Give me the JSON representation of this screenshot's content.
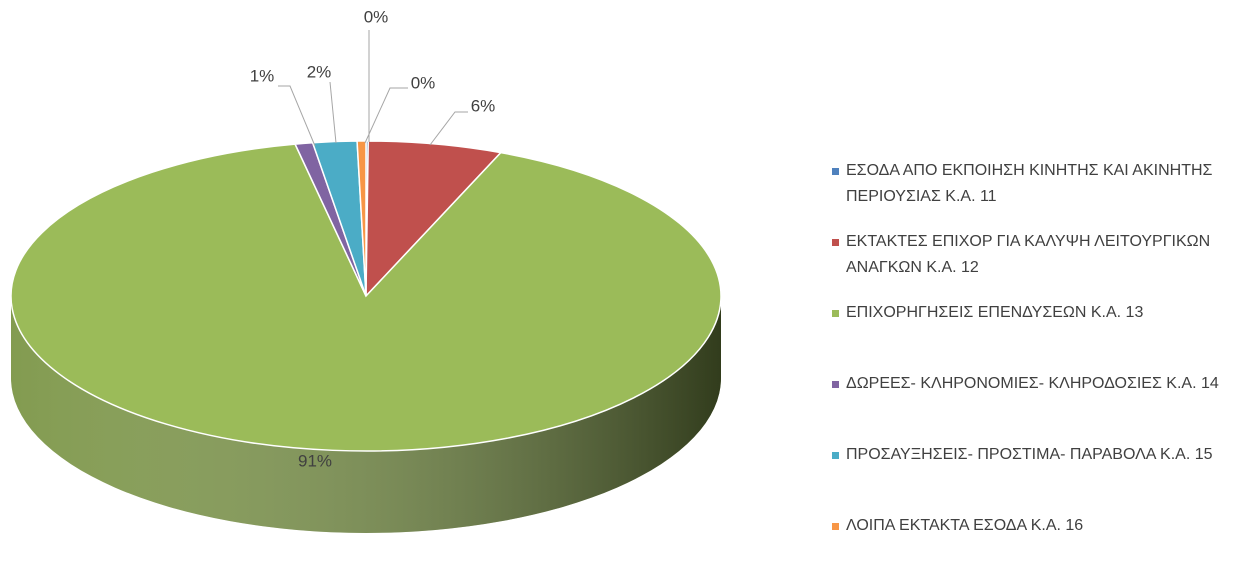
{
  "chart_data": {
    "type": "pie",
    "categories": [
      "ΕΣΟΔΑ ΑΠΟ ΕΚΠΟΙΗΣΗ ΚΙΝΗΤΗΣ ΚΑΙ ΑΚΙΝΗΤΗΣ ΠΕΡΙΟΥΣΙΑΣ Κ.Α. 11",
      "ΕΚΤΑΚΤΕΣ ΕΠΙΧΟΡ ΓΙΑ ΚΑΛΥΨΗ ΛΕΙΤΟΥΡΓΙΚΩΝ ΑΝΑΓΚΩΝ Κ.Α. 12",
      "ΕΠΙΧΟΡΗΓΗΣΕΙΣ ΕΠΕΝΔΥΣΕΩΝ Κ.Α. 13",
      "ΔΩΡΕΕΣ- ΚΛΗΡΟΝΟΜΙΕΣ- ΚΛΗΡΟΔΟΣΙΕΣ Κ.Α. 14",
      "ΠΡΟΣΑΥΞΗΣΕΙΣ- ΠΡΟΣΤΙΜΑ- ΠΑΡΑΒΟΛΑ Κ.Α. 15",
      "ΛΟΙΠΑ ΕΚΤΑΚΤΑ ΕΣΟΔΑ Κ.Α. 16"
    ],
    "values": [
      0.1,
      6.1,
      90.6,
      0.8,
      2.0,
      0.4
    ],
    "value_labels": [
      "0%",
      "6%",
      "91%",
      "1%",
      "2%",
      "0%"
    ],
    "colors": [
      "#4f81bd",
      "#c0504d",
      "#9bbb59",
      "#8064a2",
      "#4bacc6",
      "#f79646"
    ],
    "legend": "right"
  }
}
